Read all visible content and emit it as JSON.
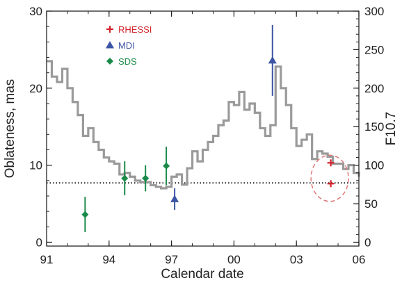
{
  "chart_data": {
    "type": "line",
    "xlabel": "Calendar date",
    "ylabel": "Oblateness, mas",
    "y2label": "F10.7",
    "x_ticks": [
      "91",
      "94",
      "97",
      "00",
      "03",
      "06"
    ],
    "x_range": [
      1991,
      2006
    ],
    "y_ticks": [
      "0",
      "10",
      "20",
      "30"
    ],
    "y_range": [
      -0.5,
      30
    ],
    "y2_ticks": [
      "0",
      "50",
      "100",
      "150",
      "200",
      "250",
      "300"
    ],
    "y2_range": [
      -5,
      300
    ],
    "grid": false,
    "legend_position": "top-left",
    "reference_line": {
      "style": "dotted",
      "y": 7.7
    },
    "highlight_ellipse": {
      "style": "dashed",
      "color": "#e07070",
      "center": [
        2004.6,
        8.3
      ],
      "radius": [
        0.9,
        3.0
      ]
    },
    "series": [
      {
        "name": "F10.7 (monthly)",
        "axis": "right",
        "color": "#9a9a9a",
        "style": "step",
        "x": [
          1991.0,
          1991.25,
          1991.5,
          1991.75,
          1992.0,
          1992.25,
          1992.5,
          1992.75,
          1993.0,
          1993.25,
          1993.5,
          1993.75,
          1994.0,
          1994.25,
          1994.5,
          1994.75,
          1995.0,
          1995.25,
          1995.5,
          1995.75,
          1996.0,
          1996.25,
          1996.5,
          1996.75,
          1997.0,
          1997.25,
          1997.5,
          1997.75,
          1998.0,
          1998.25,
          1998.5,
          1998.75,
          1999.0,
          1999.25,
          1999.5,
          1999.75,
          2000.0,
          2000.25,
          2000.5,
          2000.75,
          2001.0,
          2001.25,
          2001.5,
          2001.75,
          2002.0,
          2002.25,
          2002.5,
          2002.75,
          2003.0,
          2003.25,
          2003.5,
          2003.75,
          2004.0,
          2004.25,
          2004.5,
          2004.75,
          2005.0,
          2005.25,
          2005.5,
          2005.75,
          2006.0
        ],
        "values": [
          235,
          215,
          208,
          225,
          200,
          182,
          165,
          138,
          148,
          130,
          120,
          110,
          105,
          102,
          88,
          90,
          85,
          80,
          78,
          78,
          74,
          72,
          70,
          72,
          85,
          88,
          75,
          96,
          118,
          105,
          120,
          130,
          138,
          152,
          158,
          182,
          178,
          195,
          172,
          180,
          168,
          148,
          138,
          152,
          228,
          200,
          178,
          148,
          125,
          133,
          140,
          108,
          118,
          115,
          111,
          102,
          102,
          95,
          100,
          90,
          85
        ]
      },
      {
        "name": "RHESSI",
        "axis": "left",
        "color": "#d3232b",
        "marker": "plus",
        "points": [
          {
            "x": 2004.65,
            "y": 10.3,
            "err": 0.3
          },
          {
            "x": 2004.65,
            "y": 7.6,
            "err": 0.2
          }
        ]
      },
      {
        "name": "MDI",
        "axis": "left",
        "color": "#3b55a4",
        "marker": "triangle",
        "points": [
          {
            "x": 1997.15,
            "y": 5.6,
            "err": 1.4
          },
          {
            "x": 2001.85,
            "y": 23.6,
            "err": 4.6
          }
        ]
      },
      {
        "name": "SDS",
        "axis": "left",
        "color": "#1a8a48",
        "marker": "diamond",
        "points": [
          {
            "x": 1992.85,
            "y": 3.6,
            "err": 2.3
          },
          {
            "x": 1994.75,
            "y": 8.3,
            "err": 2.2
          },
          {
            "x": 1995.75,
            "y": 8.3,
            "err": 1.7
          },
          {
            "x": 1996.75,
            "y": 9.9,
            "err": 2.5
          }
        ]
      }
    ]
  }
}
